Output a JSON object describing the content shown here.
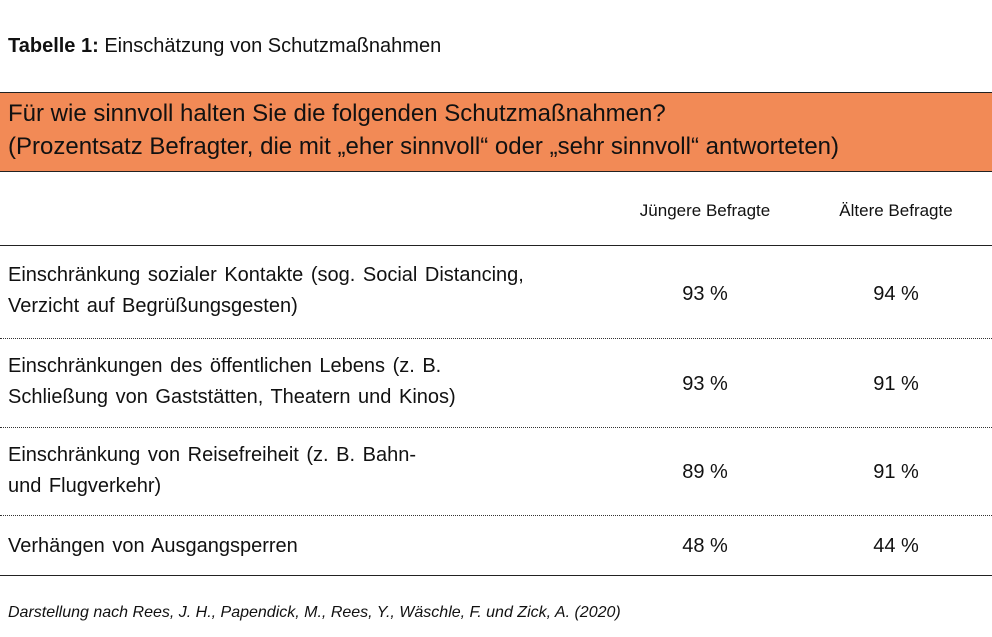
{
  "caption": {
    "label": "Tabelle 1:",
    "text": "Einschätzung von Schutzmaßnahmen"
  },
  "question": {
    "line1": "Für wie sinnvoll halten Sie die folgenden Schutzmaßnahmen?",
    "line2": "(Prozentsatz Befragter, die mit „eher sinnvoll“ oder „sehr sinnvoll“ antworteten)"
  },
  "columns": [
    "Jüngere Befragte",
    "Ältere Befragte"
  ],
  "rows": [
    {
      "label_lines": [
        "Einschränkung sozialer Kontakte (sog. Social Distancing,",
        "Verzicht auf Begrüßungsgesten)"
      ],
      "values": [
        "93 %",
        "94 %"
      ]
    },
    {
      "label_lines": [
        "Einschränkungen des öffentlichen Lebens (z. B.",
        "Schließung von Gaststätten, Theatern und Kinos)"
      ],
      "values": [
        "93 %",
        "91 %"
      ]
    },
    {
      "label_lines": [
        "Einschränkung von Reisefreiheit (z. B. Bahn-",
        "und Flugverkehr)"
      ],
      "values": [
        "89 %",
        "91 %"
      ]
    },
    {
      "label_lines": [
        "Verhängen von Ausgangsperren"
      ],
      "values": [
        "48 %",
        "44 %"
      ]
    }
  ],
  "source": "Darstellung nach Rees, J. H., Papendick, M., Rees, Y., Wäschle, F. und Zick, A. (2020)"
}
